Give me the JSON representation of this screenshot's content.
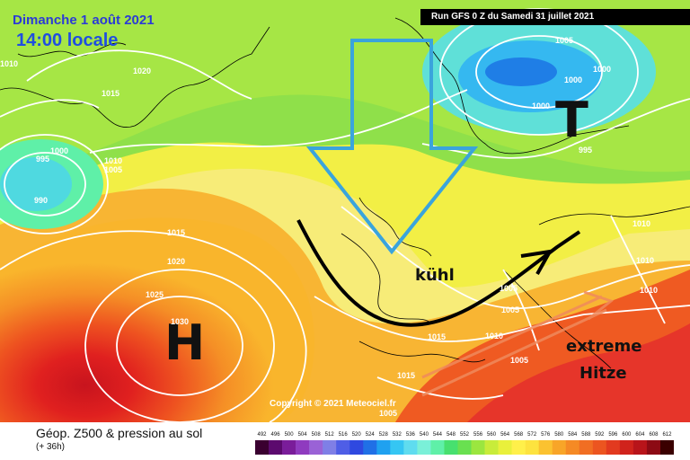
{
  "header": {
    "date": "Dimanche 1 août 2021",
    "time": "14:00 locale",
    "run": "Run GFS 0 Z du Samedi 31 juillet 2021"
  },
  "copyright": "Copyright © 2021 Meteociel.fr",
  "centers": {
    "high": "H",
    "low": "T"
  },
  "annotations": {
    "cool": "kühl",
    "hot_1": "extreme",
    "hot_2": "Hitze"
  },
  "isobars": {
    "a1010": "1010",
    "a1020": "1020",
    "a1015": "1015",
    "a1000": "1000",
    "a995": "995",
    "a1005": "1005",
    "a1010b": "1010",
    "a990": "990",
    "b1005": "1005",
    "b1000": "1000",
    "b1000b": "1000",
    "b1000c": "1000",
    "b995": "995",
    "c1015": "1015",
    "c1020": "1020",
    "c1025": "1025",
    "c1030": "1030",
    "d1015": "1015",
    "d1015b": "1015",
    "d1010": "1010",
    "d1005": "1005",
    "e1005": "1005",
    "e1010": "1010",
    "e1010b": "1010",
    "e1010c": "1010",
    "e1005b": "1005",
    "e1015": "1015",
    "e1005c": "1005"
  },
  "legend": {
    "title": "Géop. Z500 & pression au sol",
    "subtitle": "(+ 36h)",
    "ticks": [
      "492",
      "496",
      "500",
      "504",
      "508",
      "512",
      "516",
      "520",
      "524",
      "528",
      "532",
      "536",
      "540",
      "544",
      "548",
      "552",
      "556",
      "560",
      "564",
      "568",
      "572",
      "576",
      "580",
      "584",
      "588",
      "592",
      "596",
      "600",
      "604",
      "608",
      "612"
    ],
    "colors": [
      "#3a0030",
      "#5c0a6e",
      "#7a1d9a",
      "#8f3bbf",
      "#9a62d6",
      "#7f7fe6",
      "#4f5ee6",
      "#2f49e0",
      "#2070e6",
      "#1fa1f0",
      "#35c6f3",
      "#5fdcef",
      "#7af0d8",
      "#5ff0a8",
      "#47e06f",
      "#69e050",
      "#9be63f",
      "#c8ec3a",
      "#e9f03b",
      "#fff04a",
      "#fde33f",
      "#fbc230",
      "#f8a528",
      "#f58a25",
      "#f16e23",
      "#ec5520",
      "#e23a1f",
      "#d0231c",
      "#b8141a",
      "#8c0a14",
      "#3a0000"
    ]
  }
}
